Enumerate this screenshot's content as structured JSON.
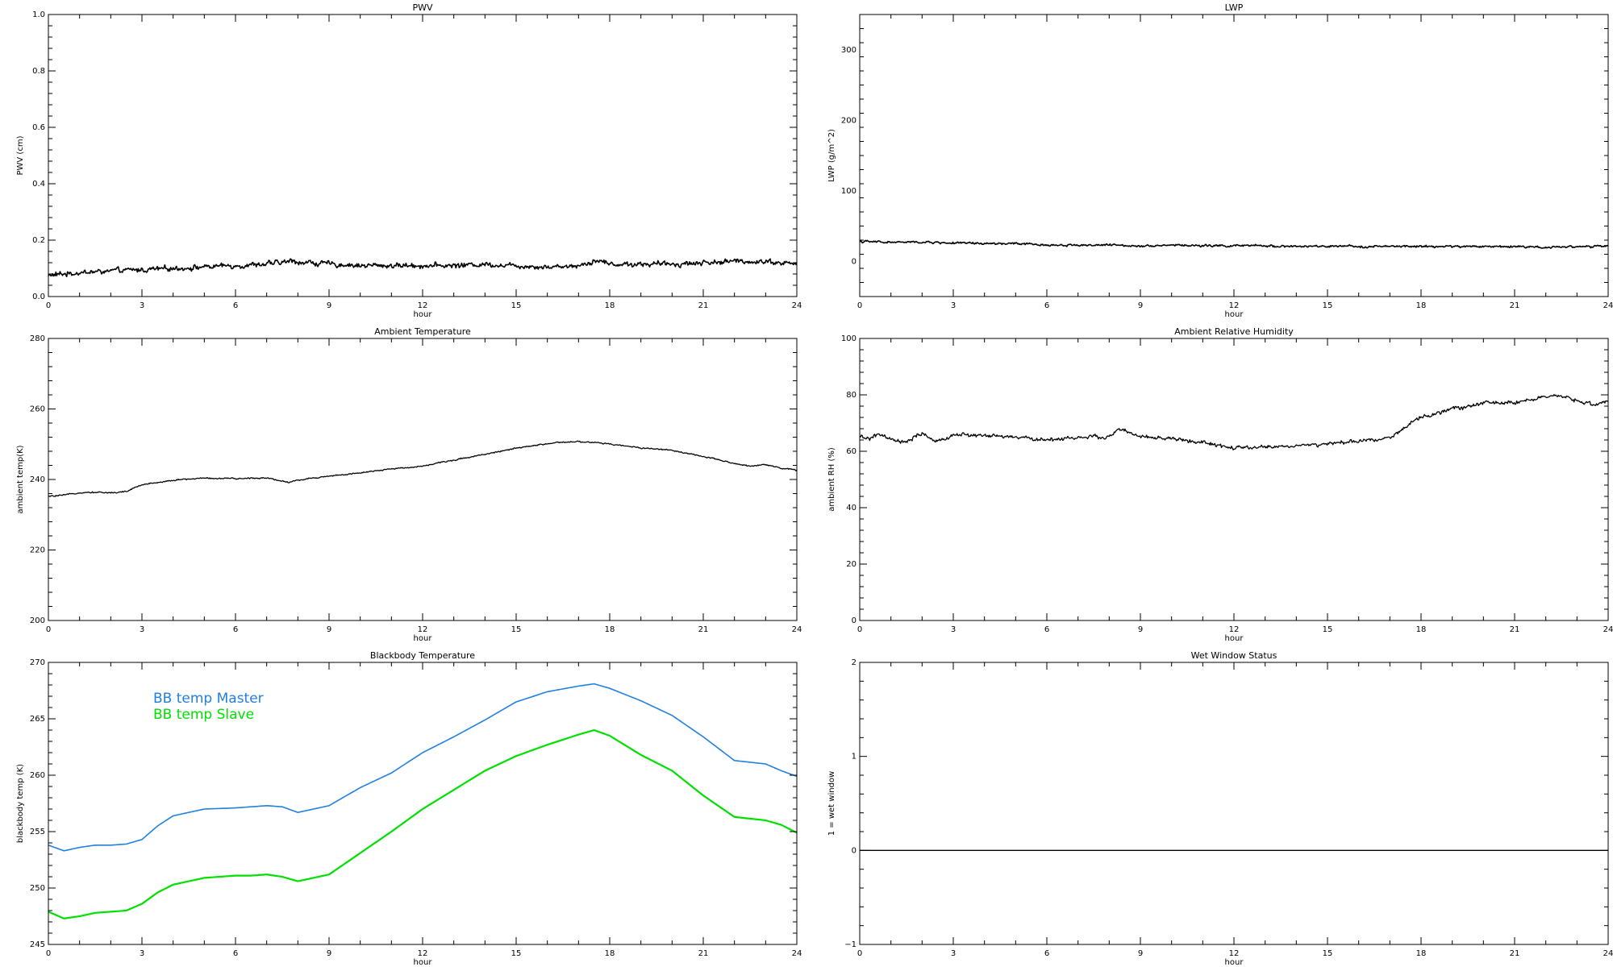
{
  "chart_data": [
    {
      "type": "line",
      "title": "PWV",
      "xlabel": "hour",
      "ylabel": "PWV (cm)",
      "xlim": [
        0,
        24
      ],
      "ylim": [
        0,
        1
      ],
      "xticks": [
        0,
        3,
        6,
        9,
        12,
        15,
        18,
        21,
        24
      ],
      "yticks": [
        0.0,
        0.2,
        0.4,
        0.6,
        0.8,
        1.0
      ],
      "ytick_labels": [
        "0.0",
        "0.2",
        "0.4",
        "0.6",
        "0.8",
        "1.0"
      ],
      "grid": false,
      "noise": 0.012,
      "series": [
        {
          "name": "",
          "color": "#000000",
          "x": [
            0,
            1,
            2,
            3,
            4,
            5,
            6,
            7,
            7.8,
            9,
            10,
            11,
            12,
            13,
            14,
            15,
            16,
            17,
            17.6,
            18,
            19,
            20,
            21,
            22,
            23,
            24
          ],
          "y": [
            0.075,
            0.085,
            0.09,
            0.095,
            0.1,
            0.105,
            0.11,
            0.115,
            0.125,
            0.115,
            0.11,
            0.11,
            0.11,
            0.11,
            0.115,
            0.11,
            0.105,
            0.11,
            0.13,
            0.115,
            0.115,
            0.115,
            0.12,
            0.125,
            0.125,
            0.115
          ]
        }
      ]
    },
    {
      "type": "line",
      "title": "LWP",
      "xlabel": "hour",
      "ylabel": "LWP (g/m^2)",
      "xlim": [
        0,
        24
      ],
      "ylim": [
        -50,
        350
      ],
      "xticks": [
        0,
        3,
        6,
        9,
        12,
        15,
        18,
        21,
        24
      ],
      "yticks": [
        0,
        100,
        200,
        300
      ],
      "ytick_labels": [
        "0",
        "100",
        "200",
        "300"
      ],
      "grid": false,
      "noise": 2.0,
      "series": [
        {
          "name": "",
          "color": "#000000",
          "x": [
            0,
            1,
            2,
            3,
            4,
            5,
            6,
            7,
            8,
            9,
            10,
            11,
            12,
            13,
            14,
            15,
            16,
            17,
            18,
            19,
            20,
            21,
            22,
            23,
            24
          ],
          "y": [
            28,
            27,
            27,
            26,
            25,
            25,
            23,
            23,
            23,
            22,
            23,
            22,
            22,
            22,
            21,
            21,
            21,
            21,
            21,
            21,
            21,
            21,
            20,
            21,
            21
          ]
        }
      ]
    },
    {
      "type": "line",
      "title": "Ambient Temperature",
      "xlabel": "hour",
      "ylabel": "ambient temp(K)",
      "xlim": [
        0,
        24
      ],
      "ylim": [
        200,
        280
      ],
      "xticks": [
        0,
        3,
        6,
        9,
        12,
        15,
        18,
        21,
        24
      ],
      "yticks": [
        200,
        220,
        240,
        260,
        280
      ],
      "ytick_labels": [
        "200",
        "220",
        "240",
        "260",
        "280"
      ],
      "grid": false,
      "noise": 0.25,
      "series": [
        {
          "name": "",
          "color": "#000000",
          "x": [
            0,
            0.5,
            1,
            1.5,
            2,
            2.5,
            3,
            4,
            5,
            6,
            7,
            7.7,
            8,
            9,
            10,
            11,
            12,
            13,
            14,
            15,
            16,
            16.5,
            17,
            17.5,
            18,
            19,
            20,
            21,
            22,
            22.5,
            23,
            23.5,
            24
          ],
          "y": [
            235.2,
            235.5,
            236.3,
            236.4,
            236.2,
            236.6,
            238.5,
            239.8,
            240.4,
            240.2,
            240.5,
            239.2,
            239.8,
            241,
            241.8,
            243,
            243.8,
            245.5,
            247.2,
            248.8,
            250.2,
            250.5,
            250.7,
            250.5,
            250,
            249,
            248.3,
            246.5,
            244.5,
            243.8,
            244.3,
            243.2,
            242.6
          ]
        }
      ]
    },
    {
      "type": "line",
      "title": "Ambient Relative Humidity",
      "xlabel": "hour",
      "ylabel": "ambient RH (%)",
      "xlim": [
        0,
        24
      ],
      "ylim": [
        0,
        100
      ],
      "xticks": [
        0,
        3,
        6,
        9,
        12,
        15,
        18,
        21,
        24
      ],
      "yticks": [
        0,
        20,
        40,
        60,
        80,
        100
      ],
      "ytick_labels": [
        "0",
        "20",
        "40",
        "60",
        "80",
        "100"
      ],
      "grid": false,
      "noise": 0.9,
      "series": [
        {
          "name": "",
          "color": "#000000",
          "x": [
            0,
            0.3,
            0.6,
            1,
            1.5,
            2,
            2.5,
            3,
            4,
            5,
            6,
            7,
            8,
            8.3,
            9,
            10,
            11,
            12,
            13,
            14,
            15,
            16,
            17,
            17.3,
            18,
            19,
            20,
            21,
            22,
            22.5,
            23,
            23.5,
            24
          ],
          "y": [
            65,
            64.5,
            66,
            64,
            63,
            66.5,
            63,
            66,
            65.5,
            65,
            64,
            65,
            65,
            68,
            65,
            64.5,
            63,
            61,
            61.5,
            62,
            62.5,
            63.5,
            65,
            67,
            72,
            75,
            77,
            77.5,
            79,
            79.5,
            78,
            76.5,
            78
          ]
        }
      ]
    },
    {
      "type": "line",
      "title": "Blackbody Temperature",
      "xlabel": "hour",
      "ylabel": "blackbody temp (K)",
      "xlim": [
        0,
        24
      ],
      "ylim": [
        245,
        270
      ],
      "xticks": [
        0,
        3,
        6,
        9,
        12,
        15,
        18,
        21,
        24
      ],
      "yticks": [
        245,
        250,
        255,
        260,
        265,
        270
      ],
      "ytick_labels": [
        "245",
        "250",
        "255",
        "260",
        "265",
        "270"
      ],
      "grid": false,
      "legend_position": "top-left",
      "noise": 0,
      "series": [
        {
          "name": "BB temp Master",
          "color": "#2080e0",
          "x": [
            0,
            0.5,
            1,
            1.5,
            2,
            2.5,
            3,
            3.5,
            4,
            5,
            6,
            6.5,
            7,
            7.5,
            8,
            9,
            10,
            11,
            12,
            13,
            14,
            15,
            16,
            17,
            17.5,
            18,
            19,
            20,
            21,
            22,
            23,
            23.5,
            24
          ],
          "y": [
            253.8,
            253.3,
            253.6,
            253.8,
            253.8,
            253.9,
            254.3,
            255.5,
            256.4,
            257,
            257.1,
            257.2,
            257.3,
            257.2,
            256.7,
            257.3,
            258.9,
            260.2,
            262,
            263.4,
            264.9,
            266.5,
            267.4,
            267.9,
            268.1,
            267.7,
            266.6,
            265.3,
            263.4,
            261.3,
            261,
            260.4,
            259.9
          ]
        },
        {
          "name": "BB temp Slave",
          "color": "#00e000",
          "x": [
            0,
            0.5,
            1,
            1.5,
            2,
            2.5,
            3,
            3.5,
            4,
            5,
            6,
            6.5,
            7,
            7.5,
            8,
            9,
            10,
            11,
            12,
            13,
            14,
            15,
            16,
            17,
            17.5,
            18,
            19,
            20,
            21,
            22,
            23,
            23.5,
            24
          ],
          "y": [
            247.9,
            247.3,
            247.5,
            247.8,
            247.9,
            248,
            248.6,
            249.6,
            250.3,
            250.9,
            251.1,
            251.1,
            251.2,
            251,
            250.6,
            251.2,
            253.1,
            255,
            257,
            258.7,
            260.4,
            261.7,
            262.7,
            263.6,
            264,
            263.5,
            261.8,
            260.4,
            258.2,
            256.3,
            256,
            255.6,
            254.9
          ]
        }
      ]
    },
    {
      "type": "line",
      "title": "Wet Window Status",
      "xlabel": "hour",
      "ylabel": "1 = wet window",
      "xlim": [
        0,
        24
      ],
      "ylim": [
        -1,
        2
      ],
      "xticks": [
        0,
        3,
        6,
        9,
        12,
        15,
        18,
        21,
        24
      ],
      "yticks": [
        -1,
        0,
        1,
        2
      ],
      "ytick_labels": [
        "−1",
        "0",
        "1",
        "2"
      ],
      "grid": false,
      "noise": 0,
      "series": [
        {
          "name": "",
          "color": "#000000",
          "x": [
            0,
            24
          ],
          "y": [
            0,
            0
          ]
        }
      ]
    }
  ]
}
